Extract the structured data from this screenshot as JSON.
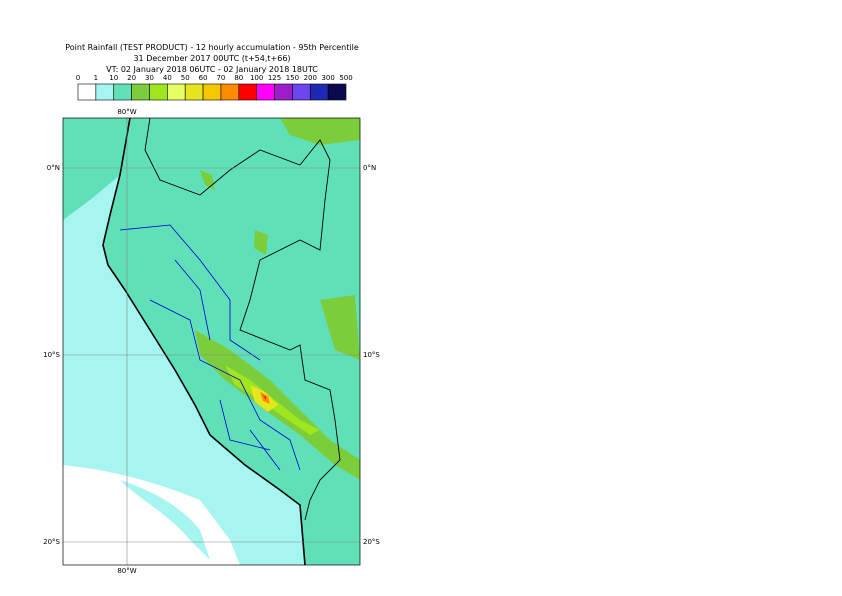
{
  "header": {
    "title": "Point Rainfall (TEST PRODUCT) - 12 hourly accumulation - 95th Percentile",
    "base_time": "31 December 2017 00UTC (t+54,t+66)",
    "valid_time": "VT: 02 January 2018 06UTC - 02 January 2018 18UTC"
  },
  "legend": {
    "thresholds": [
      0,
      1,
      10,
      20,
      30,
      40,
      50,
      60,
      70,
      80,
      100,
      125,
      150,
      200,
      300,
      500
    ],
    "colors": [
      "#ffffff",
      "#a6f5f0",
      "#60e0b8",
      "#7ccd3c",
      "#a0e61e",
      "#e6ff64",
      "#e6e61e",
      "#f5c800",
      "#ff8c00",
      "#ff0000",
      "#ff00ff",
      "#9b1ec8",
      "#6e46f0",
      "#1e28b4",
      "#0a0a50"
    ]
  },
  "map": {
    "lon_label": "80°W",
    "lat_labels": [
      "0°N",
      "10°S",
      "20°S"
    ]
  }
}
